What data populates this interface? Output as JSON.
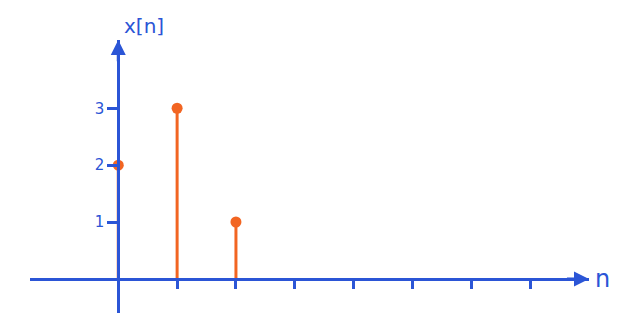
{
  "chart_data": {
    "type": "stem",
    "xlabel": "n",
    "ylabel": "x[n]",
    "x": [
      0,
      1,
      2
    ],
    "values": [
      2,
      3,
      1
    ],
    "color": "#f26522",
    "xlim": [
      -1.5,
      8
    ],
    "ylim": [
      -0.6,
      4.2
    ],
    "xticks": [
      1,
      2,
      3,
      4,
      5,
      6,
      7
    ],
    "yticks": [
      1,
      2,
      3
    ],
    "tick_labels": "y",
    "grid": false
  }
}
